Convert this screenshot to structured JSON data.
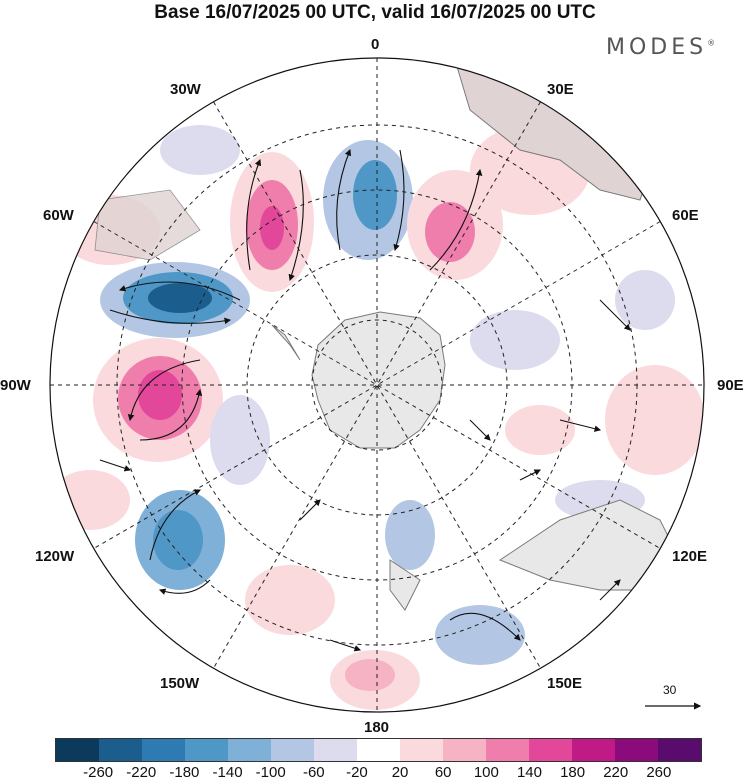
{
  "title": "Base 16/07/2025 00 UTC, valid 16/07/2025 00 UTC",
  "brand": "MODES",
  "brand_mark": "®",
  "longitude_labels": {
    "n": "0",
    "e30": "30E",
    "e60": "60E",
    "e90": "90E",
    "e120": "120E",
    "e150": "150E",
    "s": "180",
    "w150": "150W",
    "w120": "120W",
    "w90": "90W",
    "w60": "60W",
    "w30": "30W"
  },
  "reference_vector_label": "30",
  "colorbar": {
    "colors": [
      "#0b3a5c",
      "#1b5d8c",
      "#2e7ab3",
      "#4f97c7",
      "#7fb0d8",
      "#b3c7e4",
      "#dcdcee",
      "#ffffff",
      "#fadadd",
      "#f6b3c4",
      "#f07eac",
      "#e2479a",
      "#c01a86",
      "#8b0b7d",
      "#5a0b6e"
    ],
    "ticks": [
      "-260",
      "-220",
      "-180",
      "-140",
      "-100",
      "-60",
      "-20",
      "20",
      "60",
      "100",
      "140",
      "180",
      "220",
      "260"
    ]
  },
  "map_colors": {
    "land": "#e8e8e8",
    "coast": "#7a7a7a",
    "grid": "#222222"
  }
}
